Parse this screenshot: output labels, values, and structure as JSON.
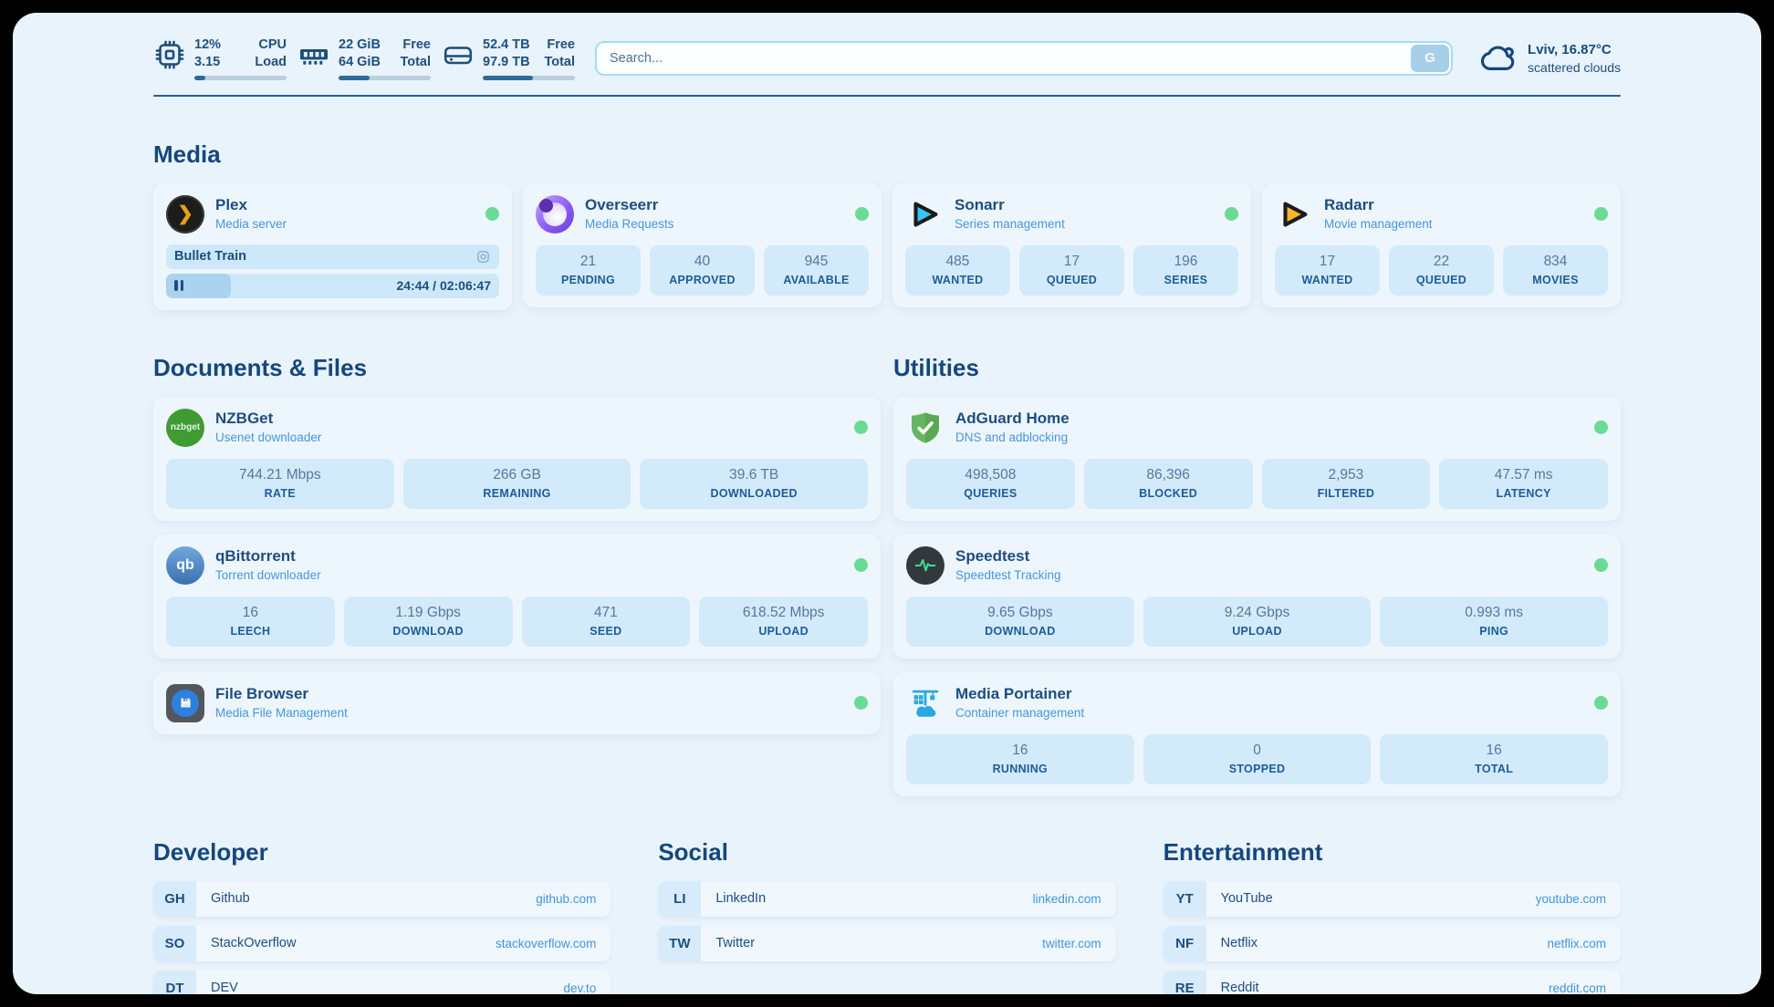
{
  "topbar": {
    "metrics": [
      {
        "icon": "cpu-icon",
        "rows": [
          {
            "value": "12%",
            "label": "CPU"
          },
          {
            "value": "3.15",
            "label": "Load"
          }
        ],
        "progress_pct": 12
      },
      {
        "icon": "ram-icon",
        "rows": [
          {
            "value": "22 GiB",
            "label": "Free"
          },
          {
            "value": "64 GiB",
            "label": "Total"
          }
        ],
        "progress_pct": 34
      },
      {
        "icon": "disk-icon",
        "rows": [
          {
            "value": "52.4 TB",
            "label": "Free"
          },
          {
            "value": "97.9 TB",
            "label": "Total"
          }
        ],
        "progress_pct": 54
      }
    ],
    "search": {
      "placeholder": "Search...",
      "button_label": "G"
    },
    "weather": {
      "icon": "cloud-icon",
      "location_temp": "Lviv, 16.87°C",
      "condition": "scattered clouds"
    }
  },
  "sections": {
    "media": {
      "title": "Media",
      "plex": {
        "icon": "plex-icon",
        "name": "Plex",
        "subtitle": "Media server",
        "status": "online",
        "now_playing": {
          "title": "Bullet Train",
          "time": "24:44 / 02:06:47",
          "progress_pct": 19.5
        }
      },
      "overseerr": {
        "icon": "overseerr-icon",
        "name": "Overseerr",
        "subtitle": "Media Requests",
        "status": "online",
        "stats": [
          {
            "value": "21",
            "label": "PENDING"
          },
          {
            "value": "40",
            "label": "APPROVED"
          },
          {
            "value": "945",
            "label": "AVAILABLE"
          }
        ]
      },
      "sonarr": {
        "icon": "sonarr-icon",
        "name": "Sonarr",
        "subtitle": "Series management",
        "status": "online",
        "stats": [
          {
            "value": "485",
            "label": "WANTED"
          },
          {
            "value": "17",
            "label": "QUEUED"
          },
          {
            "value": "196",
            "label": "SERIES"
          }
        ]
      },
      "radarr": {
        "icon": "radarr-icon",
        "name": "Radarr",
        "subtitle": "Movie management",
        "status": "online",
        "stats": [
          {
            "value": "17",
            "label": "WANTED"
          },
          {
            "value": "22",
            "label": "QUEUED"
          },
          {
            "value": "834",
            "label": "MOVIES"
          }
        ]
      }
    },
    "documents": {
      "title": "Documents & Files",
      "nzbget": {
        "icon": "nzbget-icon",
        "badge_text": "nzbget",
        "name": "NZBGet",
        "subtitle": "Usenet downloader",
        "status": "online",
        "stats": [
          {
            "value": "744.21 Mbps",
            "label": "RATE"
          },
          {
            "value": "266 GB",
            "label": "REMAINING"
          },
          {
            "value": "39.6 TB",
            "label": "DOWNLOADED"
          }
        ]
      },
      "qbittorrent": {
        "icon": "qbittorrent-icon",
        "badge_text": "qb",
        "name": "qBittorrent",
        "subtitle": "Torrent downloader",
        "status": "online",
        "stats": [
          {
            "value": "16",
            "label": "LEECH"
          },
          {
            "value": "1.19 Gbps",
            "label": "DOWNLOAD"
          },
          {
            "value": "471",
            "label": "SEED"
          },
          {
            "value": "618.52 Mbps",
            "label": "UPLOAD"
          }
        ]
      },
      "filebrowser": {
        "icon": "filebrowser-icon",
        "name": "File Browser",
        "subtitle": "Media File Management",
        "status": "online"
      }
    },
    "utilities": {
      "title": "Utilities",
      "adguard": {
        "icon": "adguard-icon",
        "name": "AdGuard Home",
        "subtitle": "DNS and adblocking",
        "status": "online",
        "stats": [
          {
            "value": "498,508",
            "label": "QUERIES"
          },
          {
            "value": "86,396",
            "label": "BLOCKED"
          },
          {
            "value": "2,953",
            "label": "FILTERED"
          },
          {
            "value": "47.57 ms",
            "label": "LATENCY"
          }
        ]
      },
      "speedtest": {
        "icon": "speedtest-icon",
        "name": "Speedtest",
        "subtitle": "Speedtest Tracking",
        "status": "online",
        "stats": [
          {
            "value": "9.65 Gbps",
            "label": "DOWNLOAD"
          },
          {
            "value": "9.24 Gbps",
            "label": "UPLOAD"
          },
          {
            "value": "0.993 ms",
            "label": "PING"
          }
        ]
      },
      "portainer": {
        "icon": "portainer-icon",
        "name": "Media Portainer",
        "subtitle": "Container management",
        "status": "online",
        "stats": [
          {
            "value": "16",
            "label": "RUNNING"
          },
          {
            "value": "0",
            "label": "STOPPED"
          },
          {
            "value": "16",
            "label": "TOTAL"
          }
        ]
      }
    },
    "bookmarks": [
      {
        "title": "Developer",
        "links": [
          {
            "abbr": "GH",
            "name": "Github",
            "url": "github.com"
          },
          {
            "abbr": "SO",
            "name": "StackOverflow",
            "url": "stackoverflow.com"
          },
          {
            "abbr": "DT",
            "name": "DEV",
            "url": "dev.to"
          }
        ]
      },
      {
        "title": "Social",
        "links": [
          {
            "abbr": "LI",
            "name": "LinkedIn",
            "url": "linkedin.com"
          },
          {
            "abbr": "TW",
            "name": "Twitter",
            "url": "twitter.com"
          }
        ]
      },
      {
        "title": "Entertainment",
        "links": [
          {
            "abbr": "YT",
            "name": "YouTube",
            "url": "youtube.com"
          },
          {
            "abbr": "NF",
            "name": "Netflix",
            "url": "netflix.com"
          },
          {
            "abbr": "RE",
            "name": "Reddit",
            "url": "reddit.com"
          }
        ]
      }
    ]
  },
  "colors": {
    "page_bg": "#e9f3fc",
    "frame_bg": "#000000",
    "dark_navy": "#14477d",
    "accent_blue": "#3e96e0",
    "status_online_green": "#69db95",
    "stat_box_bg": "#d3eafa",
    "progress_fill": "#2d6a99"
  }
}
